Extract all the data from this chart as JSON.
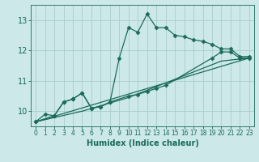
{
  "xlabel": "Humidex (Indice chaleur)",
  "ylabel": "",
  "background_color": "#cce8e8",
  "grid_color": "#aacccc",
  "line_color": "#1a6b5a",
  "xlim": [
    -0.5,
    23.5
  ],
  "ylim": [
    9.5,
    13.5
  ],
  "yticks": [
    10,
    11,
    12,
    13
  ],
  "xticks": [
    0,
    1,
    2,
    3,
    4,
    5,
    6,
    7,
    8,
    9,
    10,
    11,
    12,
    13,
    14,
    15,
    16,
    17,
    18,
    19,
    20,
    21,
    22,
    23
  ],
  "lines": [
    {
      "x": [
        0,
        1,
        2,
        3,
        4,
        5,
        6,
        7,
        8,
        9,
        10,
        11,
        12,
        13,
        14,
        15,
        16,
        17,
        18,
        19,
        20,
        21,
        22,
        23
      ],
      "y": [
        9.65,
        9.9,
        9.85,
        10.3,
        10.4,
        10.6,
        10.1,
        10.15,
        10.3,
        11.75,
        12.75,
        12.6,
        13.2,
        12.75,
        12.75,
        12.5,
        12.45,
        12.35,
        12.3,
        12.2,
        12.05,
        12.05,
        11.8,
        11.8
      ],
      "has_markers": true
    },
    {
      "x": [
        0,
        2,
        3,
        4,
        5,
        6,
        7,
        8,
        10,
        11,
        12,
        13,
        14,
        19,
        20,
        21,
        22,
        23
      ],
      "y": [
        9.65,
        9.85,
        10.3,
        10.4,
        10.6,
        10.1,
        10.15,
        10.3,
        10.5,
        10.55,
        10.65,
        10.75,
        10.85,
        11.75,
        11.95,
        11.95,
        11.75,
        11.75
      ],
      "has_markers": true
    },
    {
      "x": [
        0,
        23
      ],
      "y": [
        9.65,
        11.75
      ],
      "has_markers": false
    },
    {
      "x": [
        0,
        5,
        10,
        15,
        20,
        23
      ],
      "y": [
        9.65,
        10.0,
        10.45,
        11.05,
        11.65,
        11.75
      ],
      "has_markers": false
    }
  ]
}
